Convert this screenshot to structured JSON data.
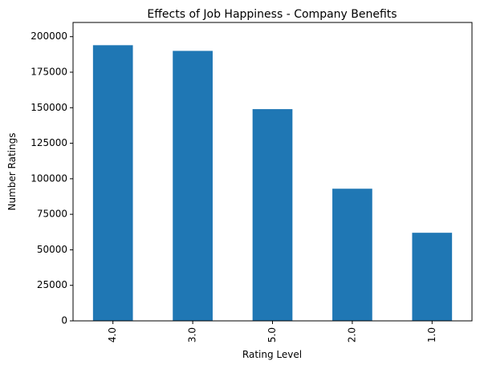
{
  "chart_data": {
    "type": "bar",
    "title": "Effects of Job Happiness - Company Benefits",
    "xlabel": "Rating Level",
    "ylabel": "Number Ratings",
    "categories": [
      "4.0",
      "3.0",
      "5.0",
      "2.0",
      "1.0"
    ],
    "values": [
      194000,
      190000,
      149000,
      93000,
      62000
    ],
    "ylim": [
      0,
      210000
    ],
    "yticks": [
      "0",
      "25000",
      "50000",
      "75000",
      "100000",
      "125000",
      "150000",
      "175000",
      "200000"
    ],
    "bar_color": "#1f77b4",
    "grid": false,
    "legend": "none"
  }
}
